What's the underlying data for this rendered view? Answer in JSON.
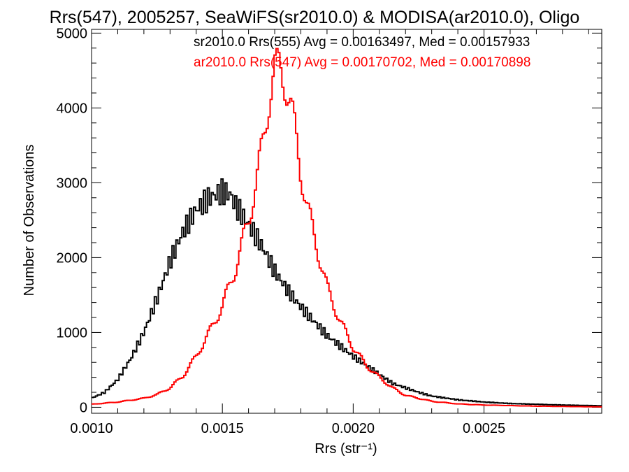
{
  "chart_data": {
    "type": "line",
    "title": "Rrs(547), 2005257, SeaWiFS(sr2010.0) & MODISA(ar2010.0), Oligo",
    "xlabel": "Rrs (str⁻¹)",
    "ylabel": "Number of Observations",
    "xlim": [
      0.001,
      0.00295
    ],
    "ylim": [
      -80,
      5050
    ],
    "xticks": [
      "0.0010",
      "0.0015",
      "0.0020",
      "0.0025"
    ],
    "yticks": [
      "0",
      "1000",
      "2000",
      "3000",
      "4000",
      "5000"
    ],
    "grid": false,
    "legend_position": "top-right",
    "series": [
      {
        "name": "sr2010.0 Rrs(555) Avg = 0.00163497, Med = 0.00157933",
        "color": "#000000",
        "points": [
          [
            0.001,
            120
          ],
          [
            0.00105,
            200
          ],
          [
            0.0011,
            370
          ],
          [
            0.00115,
            650
          ],
          [
            0.0012,
            1000
          ],
          [
            0.00125,
            1450
          ],
          [
            0.0013,
            1950
          ],
          [
            0.00135,
            2350
          ],
          [
            0.0014,
            2640
          ],
          [
            0.00145,
            2800
          ],
          [
            0.0015,
            2880
          ],
          [
            0.00153,
            2850
          ],
          [
            0.00155,
            2700
          ],
          [
            0.0016,
            2450
          ],
          [
            0.00165,
            2160
          ],
          [
            0.0017,
            1820
          ],
          [
            0.00175,
            1560
          ],
          [
            0.0018,
            1340
          ],
          [
            0.00185,
            1150
          ],
          [
            0.0019,
            960
          ],
          [
            0.00195,
            820
          ],
          [
            0.002,
            680
          ],
          [
            0.00205,
            560
          ],
          [
            0.0021,
            440
          ],
          [
            0.00215,
            320
          ],
          [
            0.0022,
            260
          ],
          [
            0.00225,
            200
          ],
          [
            0.0023,
            150
          ],
          [
            0.0024,
            100
          ],
          [
            0.0025,
            70
          ],
          [
            0.0026,
            50
          ],
          [
            0.0027,
            40
          ],
          [
            0.0028,
            30
          ],
          [
            0.00295,
            20
          ]
        ]
      },
      {
        "name": "ar2010.0 Rrs(547) Avg = 0.00170702, Med = 0.00170898",
        "color": "#ff0000",
        "points": [
          [
            0.001,
            40
          ],
          [
            0.0011,
            70
          ],
          [
            0.0012,
            120
          ],
          [
            0.00125,
            170
          ],
          [
            0.0013,
            260
          ],
          [
            0.00135,
            420
          ],
          [
            0.0014,
            680
          ],
          [
            0.00145,
            1000
          ],
          [
            0.0015,
            1350
          ],
          [
            0.00155,
            1850
          ],
          [
            0.0016,
            2500
          ],
          [
            0.00163,
            3000
          ],
          [
            0.00166,
            3650
          ],
          [
            0.00168,
            4150
          ],
          [
            0.0017,
            4500
          ],
          [
            0.00172,
            4550
          ],
          [
            0.00174,
            4350
          ],
          [
            0.00176,
            4050
          ],
          [
            0.00178,
            3650
          ],
          [
            0.0018,
            3150
          ],
          [
            0.00182,
            2750
          ],
          [
            0.00185,
            2300
          ],
          [
            0.0019,
            1600
          ],
          [
            0.00195,
            1150
          ],
          [
            0.002,
            800
          ],
          [
            0.00205,
            560
          ],
          [
            0.0021,
            400
          ],
          [
            0.00215,
            260
          ],
          [
            0.0022,
            160
          ],
          [
            0.0023,
            80
          ],
          [
            0.0024,
            45
          ],
          [
            0.0025,
            30
          ],
          [
            0.0027,
            15
          ],
          [
            0.00295,
            5
          ]
        ]
      }
    ]
  }
}
